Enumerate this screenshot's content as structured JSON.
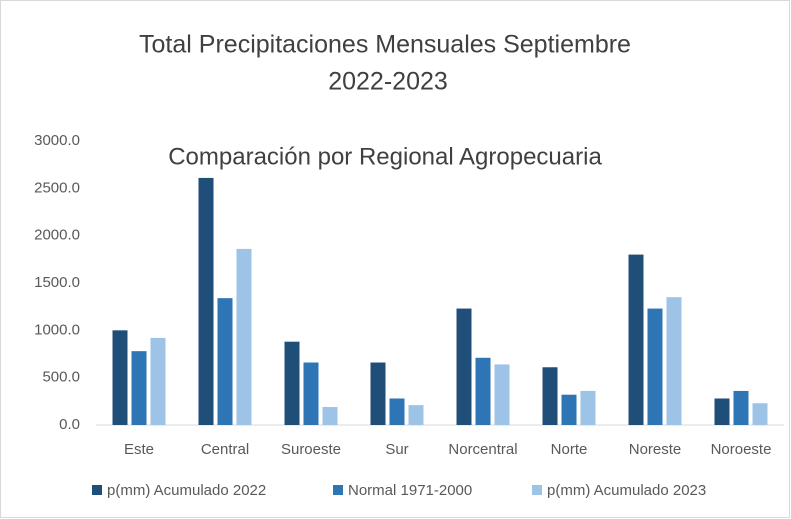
{
  "chart_data": {
    "type": "bar",
    "title": [
      "Total Precipitaciones Mensuales Septiembre",
      "2022-2023"
    ],
    "subtitle": "Comparación por Regional Agropecuaria",
    "categories": [
      "Este",
      "Central",
      "Suroeste",
      "Sur",
      "Norcentral",
      "Norte",
      "Noreste",
      "Noroeste"
    ],
    "series": [
      {
        "name": "p(mm) Acumulado 2022",
        "color": "#1f4e79",
        "values": [
          1000,
          2610,
          880,
          660,
          1230,
          610,
          1800,
          280
        ]
      },
      {
        "name": "Normal 1971-2000",
        "color": "#2e75b6",
        "values": [
          780,
          1340,
          660,
          280,
          710,
          320,
          1230,
          360
        ]
      },
      {
        "name": "p(mm) Acumulado 2023",
        "color": "#9dc3e6",
        "values": [
          920,
          1860,
          190,
          210,
          640,
          360,
          1350,
          230
        ]
      }
    ],
    "ylim": [
      0,
      3000
    ],
    "yticks": [
      {
        "value": 0,
        "label": "0.0"
      },
      {
        "value": 500,
        "label": "500.0"
      },
      {
        "value": 1000,
        "label": "1000.0"
      },
      {
        "value": 1500,
        "label": "1500.0"
      },
      {
        "value": 2000,
        "label": "2000.0"
      },
      {
        "value": 2500,
        "label": "2500.0"
      },
      {
        "value": 3000,
        "label": "3000.0"
      }
    ],
    "grid": false,
    "legend": "bottom"
  }
}
